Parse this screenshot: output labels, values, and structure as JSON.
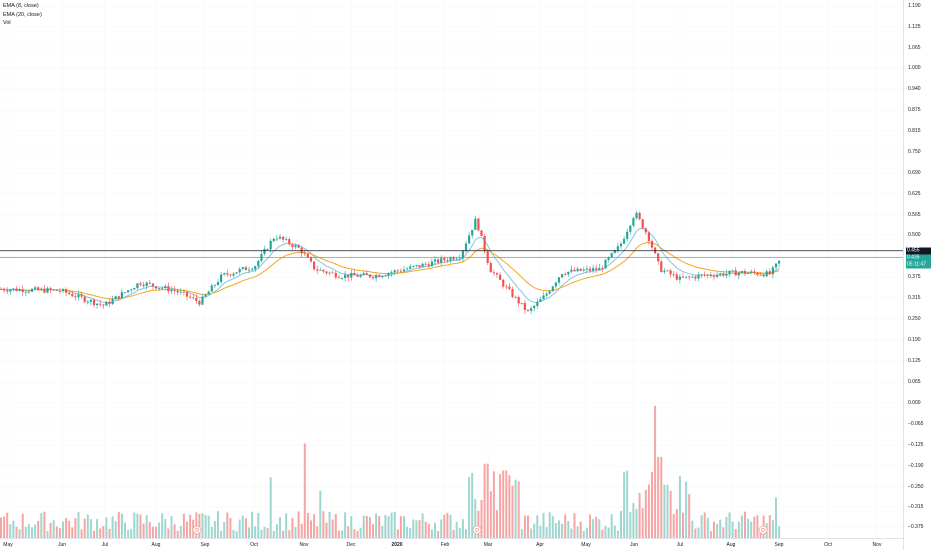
{
  "legend": {
    "ema_fast": "EMA (8, close)",
    "ema_slow": "EMA (20, close)",
    "volume": "Vol"
  },
  "price_axis": {
    "ticks": [
      "1.190",
      "1.125",
      "1.065",
      "1.000",
      "0.940",
      "0.875",
      "0.815",
      "0.750",
      "0.690",
      "0.625",
      "0.565",
      "0.500",
      "0.440",
      "0.375",
      "0.315",
      "0.250",
      "0.190",
      "0.125",
      "0.065",
      "0.000",
      "−0.065",
      "−0.125",
      "−0.190",
      "−0.250",
      "−0.315",
      "−0.375"
    ],
    "last_price_label": "0.455",
    "current_label": "0.435",
    "countdown_label": "05:11:47"
  },
  "time_axis": {
    "labels": [
      {
        "text": "May",
        "bold": false
      },
      {
        "text": "Jun",
        "bold": false
      },
      {
        "text": "Jul",
        "bold": false
      },
      {
        "text": "Aug",
        "bold": false
      },
      {
        "text": "Sep",
        "bold": false
      },
      {
        "text": "Oct",
        "bold": false
      },
      {
        "text": "Nov",
        "bold": false
      },
      {
        "text": "Dec",
        "bold": false
      },
      {
        "text": "2020",
        "bold": true
      },
      {
        "text": "Feb",
        "bold": false
      },
      {
        "text": "Mar",
        "bold": false
      },
      {
        "text": "Apr",
        "bold": false
      },
      {
        "text": "May",
        "bold": false
      },
      {
        "text": "Jun",
        "bold": false
      },
      {
        "text": "Jul",
        "bold": false
      },
      {
        "text": "Aug",
        "bold": false
      },
      {
        "text": "Sep",
        "bold": false
      },
      {
        "text": "Oct",
        "bold": false
      },
      {
        "text": "Nov",
        "bold": false
      }
    ]
  },
  "dividend_markers": [
    {
      "label": "D",
      "period": "Sep"
    },
    {
      "label": "D",
      "period": "Mar"
    },
    {
      "label": "D",
      "period": "Aug"
    }
  ],
  "colors": {
    "up": "#26a69a",
    "down": "#ef5350",
    "ema_fast": "#7ec8e3",
    "ema_slow": "#f5a623",
    "last_price": "#131722",
    "current_price": "#26a69a"
  },
  "chart_data": {
    "type": "candlestick",
    "y_range": [
      -0.375,
      1.19
    ],
    "last_price": 0.455,
    "current_price": 0.435,
    "key_points": [
      {
        "period": "May 2019",
        "price": 0.34
      },
      {
        "period": "Jul 2019",
        "price": 0.29
      },
      {
        "period": "Jul-Aug 2019",
        "price": 0.36
      },
      {
        "period": "Sep 2019",
        "price": 0.3
      },
      {
        "period": "Oct 2019",
        "price": 0.5
      },
      {
        "period": "Nov 2019",
        "price": 0.39
      },
      {
        "period": "Dec 2019",
        "price": 0.38
      },
      {
        "period": "Feb 2020",
        "price": 0.55
      },
      {
        "period": "Mar 2020",
        "price": 0.27
      },
      {
        "period": "Apr 2020",
        "price": 0.39
      },
      {
        "period": "Jun 2020",
        "price": 0.57
      },
      {
        "period": "Jul 2020",
        "price": 0.38
      },
      {
        "period": "Sep 2020",
        "price": 0.43
      }
    ]
  }
}
